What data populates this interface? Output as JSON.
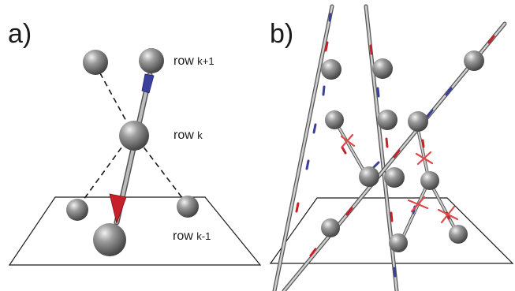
{
  "panel_a": {
    "letter": "a)",
    "labels": {
      "row_top": "row",
      "row_top_sub": "k+1",
      "row_mid": "row",
      "row_mid_sub": "k",
      "row_bottom": "row",
      "row_bottom_sub": "k-1"
    }
  },
  "panel_b": {
    "letter": "b)"
  },
  "colors": {
    "sphere": "#8a8a8a",
    "rod": "#9a9a9a",
    "blue_arrow": "#3b3f9e",
    "red_arrow": "#c8202a",
    "cross": "#e0484a",
    "line": "#1a1a1a"
  }
}
